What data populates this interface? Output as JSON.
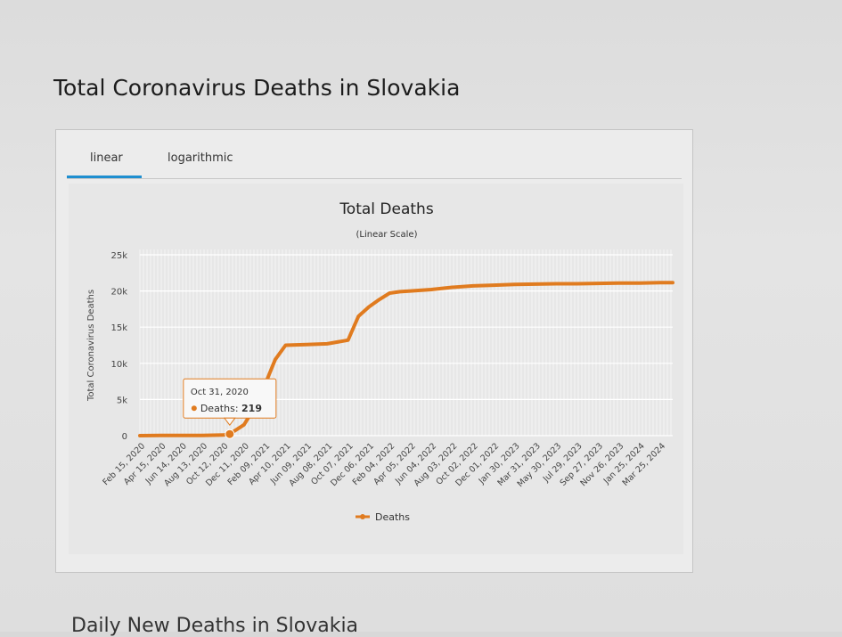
{
  "page": {
    "title": "Total Coronavirus Deaths in Slovakia",
    "next_section_heading": "Daily New Deaths in Slovakia"
  },
  "tabs": [
    {
      "label": "linear",
      "active": true
    },
    {
      "label": "logarithmic",
      "active": false
    }
  ],
  "colors": {
    "series": "#e07b1f",
    "tab_underline": "#1f8fd0",
    "grid": "#ffffff"
  },
  "tooltip": {
    "date": "Oct 31, 2020",
    "series": "Deaths",
    "value": "219"
  },
  "chart_data": {
    "type": "line",
    "title": "Total Deaths",
    "subtitle": "(Linear Scale)",
    "ylabel": "Total Coronavirus Deaths",
    "xlabel": "",
    "ylim": [
      0,
      25000
    ],
    "y_ticks": [
      "0",
      "5k",
      "10k",
      "15k",
      "20k",
      "25k"
    ],
    "x_tick_labels": [
      "Feb 15, 2020",
      "Apr 15, 2020",
      "Jun 14, 2020",
      "Aug 13, 2020",
      "Oct 12, 2020",
      "Dec 11, 2020",
      "Feb 09, 2021",
      "Apr 10, 2021",
      "Jun 09, 2021",
      "Aug 08, 2021",
      "Oct 07, 2021",
      "Dec 06, 2021",
      "Feb 04, 2022",
      "Apr 05, 2022",
      "Jun 04, 2022",
      "Aug 03, 2022",
      "Oct 02, 2022",
      "Dec 01, 2022",
      "Jan 30, 2023",
      "Mar 31, 2023",
      "May 30, 2023",
      "Jul 29, 2023",
      "Sep 27, 2023",
      "Nov 26, 2023",
      "Jan 25, 2024",
      "Mar 25, 2024"
    ],
    "grid": true,
    "legend_position": "bottom",
    "series": [
      {
        "name": "Deaths",
        "x": [
          "Feb 15, 2020",
          "Apr 15, 2020",
          "Jun 14, 2020",
          "Aug 13, 2020",
          "Oct 12, 2020",
          "Oct 31, 2020",
          "Dec 11, 2020",
          "Jan 10, 2021",
          "Feb 09, 2021",
          "Mar 11, 2021",
          "Apr 10, 2021",
          "Jun 09, 2021",
          "Aug 08, 2021",
          "Oct 07, 2021",
          "Nov 06, 2021",
          "Dec 06, 2021",
          "Jan 05, 2022",
          "Feb 04, 2022",
          "Mar 06, 2022",
          "Apr 05, 2022",
          "Jun 04, 2022",
          "Aug 03, 2022",
          "Oct 02, 2022",
          "Dec 01, 2022",
          "Jan 30, 2023",
          "Mar 31, 2023",
          "May 30, 2023",
          "Jul 29, 2023",
          "Sep 27, 2023",
          "Nov 26, 2023",
          "Jan 25, 2024",
          "Mar 25, 2024",
          "Apr 30, 2024"
        ],
        "values": [
          0,
          28,
          28,
          30,
          90,
          219,
          1500,
          3800,
          7000,
          10500,
          12500,
          12600,
          12700,
          13200,
          16500,
          17800,
          18800,
          19700,
          19900,
          20000,
          20200,
          20500,
          20700,
          20800,
          20900,
          20950,
          21000,
          21000,
          21050,
          21100,
          21100,
          21150,
          21150
        ]
      }
    ]
  }
}
